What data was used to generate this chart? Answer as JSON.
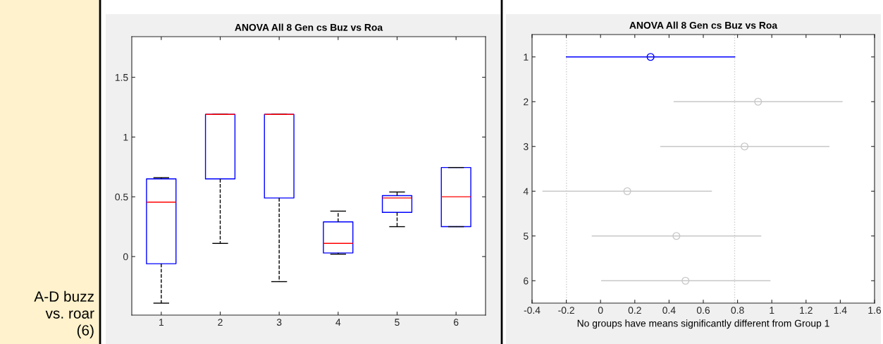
{
  "chart_data": [
    {
      "type": "box",
      "title": "ANOVA All 8 Gen cs Buz vs Roa",
      "categories": [
        "1",
        "2",
        "3",
        "4",
        "5",
        "6"
      ],
      "series": [
        {
          "color": "#0000ff",
          "boxes": [
            {
              "low": -0.39,
              "q1": -0.06,
              "median": 0.455,
              "q3": 0.65,
              "high": 0.66
            },
            {
              "low": 0.11,
              "q1": 0.65,
              "median": 1.19,
              "q3": 1.19,
              "high": 1.19
            },
            {
              "low": -0.21,
              "q1": 0.49,
              "median": 1.19,
              "q3": 1.19,
              "high": 1.19
            },
            {
              "low": 0.02,
              "q1": 0.03,
              "median": 0.11,
              "q3": 0.29,
              "high": 0.38
            },
            {
              "low": 0.25,
              "q1": 0.37,
              "median": 0.49,
              "q3": 0.51,
              "high": 0.54
            },
            {
              "low": 0.25,
              "q1": 0.25,
              "median": 0.5,
              "q3": 0.745,
              "high": 0.745
            }
          ]
        }
      ],
      "ylim": [
        -0.49,
        1.84
      ],
      "yticks": [
        0,
        0.5,
        1,
        1.5
      ],
      "grid": false,
      "legend": false,
      "annotations": [
        "A-D buzz\nvs. roar\n(6)"
      ]
    },
    {
      "type": "scatter",
      "title": "ANOVA All 8 Gen cs Buz vs Roa",
      "xlabel": "No groups have means significantly different from Group 1",
      "x": [
        0.292,
        0.92,
        0.841,
        0.156,
        0.443,
        0.496
      ],
      "values": [
        1,
        2,
        3,
        4,
        5,
        6
      ],
      "xerrors": [
        [
          -0.199,
          0.783
        ],
        [
          0.43,
          1.41
        ],
        [
          0.352,
          1.333
        ],
        [
          -0.336,
          0.647
        ],
        [
          -0.048,
          0.935
        ],
        [
          0.007,
          0.989
        ]
      ],
      "colors": [
        "#0000ff",
        "#c8c8c8",
        "#c8c8c8",
        "#c8c8c8",
        "#c8c8c8",
        "#c8c8c8"
      ],
      "marker": "circle",
      "xlim": [
        -0.4,
        1.6
      ],
      "xticks": [
        -0.4,
        -0.2,
        0,
        0.2,
        0.4,
        0.6,
        0.8,
        1,
        1.2,
        1.4,
        1.6
      ],
      "ylim": [
        6.5,
        0.5
      ],
      "yticks": [
        1,
        2,
        3,
        4,
        5,
        6
      ],
      "ref_lines": [
        {
          "axis": "x",
          "value": -0.199,
          "color": "#cccccc",
          "line_style": "dotted"
        },
        {
          "axis": "x",
          "value": 0.783,
          "color": "#cccccc",
          "line_style": "dotted"
        }
      ],
      "grid": false,
      "legend": false
    }
  ]
}
